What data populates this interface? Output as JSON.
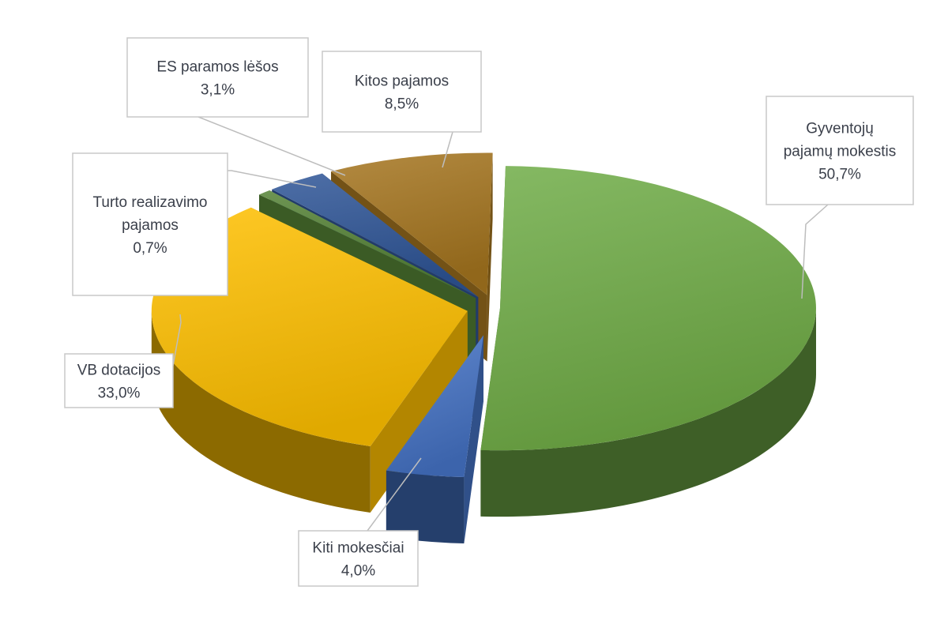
{
  "chart_data": {
    "type": "pie",
    "style": "3d-exploded",
    "title": "",
    "slices": [
      {
        "name": "Gyventojų pajamų mokestis",
        "label_lines": [
          "Gyventojų",
          "pajamų mokestis"
        ],
        "value": 50.7,
        "value_label": "50,7%",
        "color": "#70ad47"
      },
      {
        "name": "Kiti mokesčiai",
        "label_lines": [
          "Kiti mokesčiai"
        ],
        "value": 4.0,
        "value_label": "4,0%",
        "color": "#4472c4"
      },
      {
        "name": "VB dotacijos",
        "label_lines": [
          "VB dotacijos"
        ],
        "value": 33.0,
        "value_label": "33,0%",
        "color": "#ffc000"
      },
      {
        "name": "Turto realizavimo pajamos",
        "label_lines": [
          "Turto realizavimo",
          "pajamos"
        ],
        "value": 0.7,
        "value_label": "0,7%",
        "color": "#548235"
      },
      {
        "name": "ES paramos lėšos",
        "label_lines": [
          "ES paramos lėšos"
        ],
        "value": 3.1,
        "value_label": "3,1%",
        "color": "#2f5597"
      },
      {
        "name": "Kitos pajamos",
        "label_lines": [
          "Kitos pajamos"
        ],
        "value": 8.5,
        "value_label": "8,5%",
        "color": "#a5751f"
      }
    ]
  }
}
